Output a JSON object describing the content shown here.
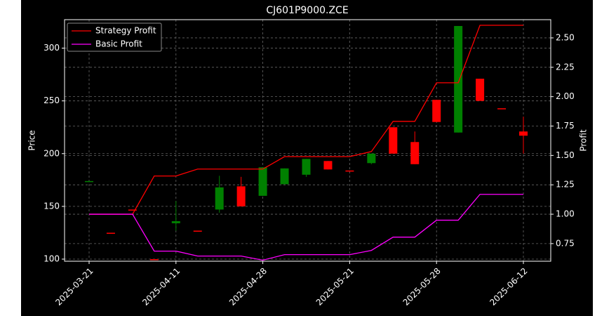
{
  "chart_data": {
    "type": "candlestick",
    "title": "CJ601P9000.ZCE",
    "ylabel": "Price",
    "y2label": "Profit",
    "categories": [
      "2025-03-21",
      null,
      null,
      null,
      "2025-04-11",
      null,
      null,
      null,
      "2025-04-28",
      null,
      null,
      null,
      "2025-05-21",
      null,
      null,
      null,
      "2025-05-28",
      null,
      null,
      null,
      "2025-06-12"
    ],
    "candles": {
      "up_color": "#008000",
      "down_color": "#ff0000",
      "open": [
        173,
        125,
        147,
        100,
        134,
        127,
        147,
        169,
        160,
        171,
        180,
        193,
        184,
        191,
        225,
        211,
        251,
        220,
        271,
        243,
        221
      ],
      "high": [
        174,
        125,
        147,
        100,
        155,
        127,
        179,
        178,
        187,
        186,
        195,
        193,
        184,
        200,
        225,
        221,
        251,
        321,
        271,
        243,
        235
      ],
      "low": [
        173,
        125,
        147,
        99,
        127,
        127,
        144,
        150,
        160,
        171,
        178,
        185,
        184,
        190,
        200,
        190,
        230,
        220,
        250,
        243,
        200
      ],
      "close": [
        174,
        125,
        147,
        100,
        136,
        127,
        168,
        150,
        187,
        186,
        195,
        185,
        184,
        200,
        200,
        190,
        230,
        321,
        250,
        243,
        217
      ]
    },
    "series": [
      {
        "name": "Strategy Profit",
        "color": "#ff0000",
        "axis": "y2",
        "values": [
          1.0,
          1.0,
          1.0,
          1.325,
          1.325,
          1.384,
          1.384,
          1.384,
          1.384,
          1.49,
          1.49,
          1.49,
          1.49,
          1.533,
          1.79,
          1.79,
          2.118,
          2.118,
          2.607,
          2.607,
          2.607
        ]
      },
      {
        "name": "Basic Profit",
        "color": "#ff00ff",
        "axis": "y2",
        "values": [
          1.0,
          1.0,
          1.0,
          0.686,
          0.686,
          0.644,
          0.644,
          0.644,
          0.609,
          0.656,
          0.656,
          0.656,
          0.656,
          0.692,
          0.805,
          0.805,
          0.949,
          0.949,
          1.169,
          1.169,
          1.169
        ]
      }
    ],
    "ylim": [
      98,
      327
    ],
    "yticks": [
      100,
      150,
      200,
      250,
      300
    ],
    "y2lim": [
      0.6,
      2.655
    ],
    "y2ticks": [
      {
        "value": 0.75,
        "label": "0.75"
      },
      {
        "value": 1.0,
        "label": "1.00"
      },
      {
        "value": 1.25,
        "label": "1.25"
      },
      {
        "value": 1.5,
        "label": "1.50"
      },
      {
        "value": 1.75,
        "label": "1.75"
      },
      {
        "value": 2.0,
        "label": "2.00"
      },
      {
        "value": 2.25,
        "label": "2.25"
      },
      {
        "value": 2.5,
        "label": "2.50"
      }
    ],
    "grid": true,
    "legend": "upper left"
  }
}
